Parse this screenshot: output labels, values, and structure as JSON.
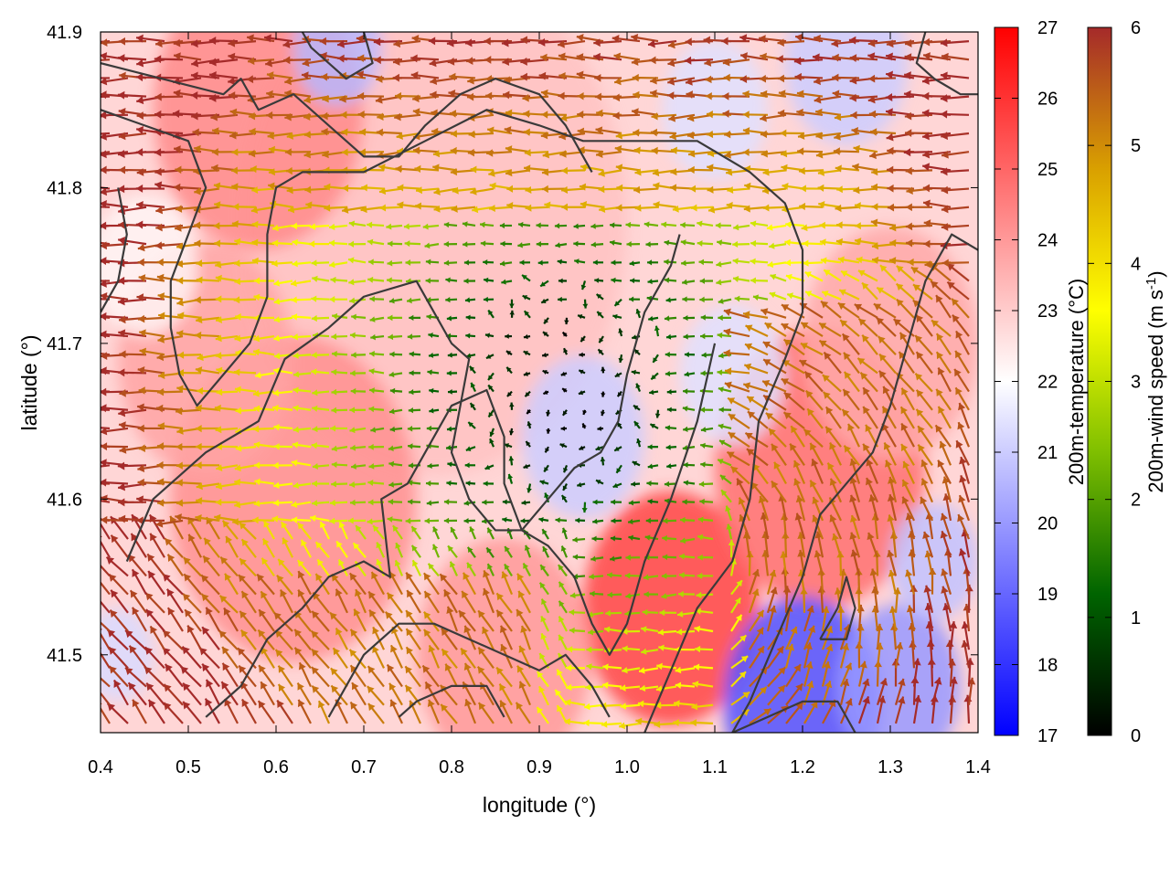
{
  "chart_data": {
    "type": "heatmap",
    "title": "",
    "xlabel": "longitude (°)",
    "ylabel": "latitude (°)",
    "xlim": [
      0.4,
      1.4
    ],
    "ylim": [
      41.45,
      41.9
    ],
    "xticks": [
      "0.4",
      "0.5",
      "0.6",
      "0.7",
      "0.8",
      "0.9",
      "1.0",
      "1.1",
      "1.2",
      "1.3",
      "1.4"
    ],
    "yticks": [
      "41.5",
      "41.6",
      "41.7",
      "41.8",
      "41.9"
    ],
    "grid": false,
    "legend": "none",
    "temperature_colorbar": {
      "label": "200m-temperature (°C)",
      "range": [
        17,
        27
      ],
      "ticks": [
        "17",
        "18",
        "19",
        "20",
        "21",
        "22",
        "23",
        "24",
        "25",
        "26",
        "27"
      ],
      "colors": {
        "min": "#0000ff",
        "mid": "#ffffff",
        "max": "#ff0000"
      }
    },
    "wind_colorbar": {
      "label_main": "200m-wind speed (m s",
      "label_exp": "-1",
      "label_close": ")",
      "range": [
        0,
        6
      ],
      "ticks": [
        "0",
        "1",
        "2",
        "3",
        "4",
        "5",
        "6"
      ],
      "colors": [
        "#000000",
        "#006400",
        "#7fbf00",
        "#ffff00",
        "#d9a000",
        "#a52a2a"
      ]
    },
    "temperature_blobs": [
      {
        "lon": 0.78,
        "lat": 41.78,
        "t": 23.2,
        "r": 0.22
      },
      {
        "lon": 0.62,
        "lat": 41.6,
        "t": 24.2,
        "r": 0.14
      },
      {
        "lon": 0.52,
        "lat": 41.69,
        "t": 23.8,
        "r": 0.1
      },
      {
        "lon": 0.58,
        "lat": 41.85,
        "t": 24.3,
        "r": 0.12
      },
      {
        "lon": 1.05,
        "lat": 41.53,
        "t": 25.6,
        "r": 0.1
      },
      {
        "lon": 1.22,
        "lat": 41.62,
        "t": 24.8,
        "r": 0.12
      },
      {
        "lon": 1.3,
        "lat": 41.7,
        "t": 23.7,
        "r": 0.1
      },
      {
        "lon": 0.86,
        "lat": 41.5,
        "t": 24.0,
        "r": 0.1
      },
      {
        "lon": 0.95,
        "lat": 41.64,
        "t": 21.0,
        "r": 0.07
      },
      {
        "lon": 1.12,
        "lat": 41.68,
        "t": 21.4,
        "r": 0.06
      },
      {
        "lon": 1.2,
        "lat": 41.47,
        "t": 18.6,
        "r": 0.09
      },
      {
        "lon": 1.31,
        "lat": 41.48,
        "t": 20.0,
        "r": 0.07
      },
      {
        "lon": 1.35,
        "lat": 41.56,
        "t": 20.8,
        "r": 0.05
      },
      {
        "lon": 0.67,
        "lat": 41.89,
        "t": 20.6,
        "r": 0.05
      },
      {
        "lon": 1.25,
        "lat": 41.88,
        "t": 21.0,
        "r": 0.07
      },
      {
        "lon": 1.1,
        "lat": 41.85,
        "t": 21.4,
        "r": 0.06
      },
      {
        "lon": 0.42,
        "lat": 41.5,
        "t": 21.3,
        "r": 0.04
      },
      {
        "lon": 0.45,
        "lat": 41.75,
        "t": 22.2,
        "r": 0.06
      }
    ],
    "wind_features": {
      "calm_center": {
        "lon": 0.93,
        "lat": 41.67,
        "radius": 0.12
      },
      "vortex_center": {
        "lon": 1.08,
        "lat": 41.58
      }
    },
    "contours": [
      [
        [
          0.4,
          41.88
        ],
        [
          0.47,
          41.87
        ],
        [
          0.54,
          41.86
        ],
        [
          0.56,
          41.87
        ],
        [
          0.58,
          41.85
        ],
        [
          0.62,
          41.86
        ],
        [
          0.66,
          41.84
        ],
        [
          0.7,
          41.82
        ],
        [
          0.74,
          41.82
        ],
        [
          0.77,
          41.84
        ],
        [
          0.81,
          41.86
        ],
        [
          0.85,
          41.87
        ],
        [
          0.9,
          41.86
        ],
        [
          0.93,
          41.84
        ],
        [
          0.96,
          41.81
        ]
      ],
      [
        [
          0.4,
          41.85
        ],
        [
          0.45,
          41.84
        ],
        [
          0.5,
          41.83
        ],
        [
          0.52,
          41.8
        ],
        [
          0.5,
          41.77
        ],
        [
          0.48,
          41.74
        ],
        [
          0.48,
          41.71
        ],
        [
          0.49,
          41.68
        ],
        [
          0.51,
          41.66
        ],
        [
          0.54,
          41.68
        ],
        [
          0.57,
          41.7
        ],
        [
          0.59,
          41.73
        ],
        [
          0.59,
          41.77
        ],
        [
          0.6,
          41.8
        ],
        [
          0.63,
          41.81
        ],
        [
          0.7,
          41.81
        ],
        [
          0.77,
          41.83
        ],
        [
          0.84,
          41.85
        ],
        [
          0.9,
          41.84
        ],
        [
          0.95,
          41.83
        ],
        [
          1.02,
          41.83
        ],
        [
          1.08,
          41.83
        ],
        [
          1.14,
          41.81
        ],
        [
          1.18,
          41.79
        ],
        [
          1.2,
          41.76
        ],
        [
          1.2,
          41.72
        ],
        [
          1.18,
          41.69
        ],
        [
          1.15,
          41.65
        ],
        [
          1.14,
          41.6
        ],
        [
          1.12,
          41.56
        ],
        [
          1.08,
          41.53
        ],
        [
          1.05,
          41.49
        ],
        [
          1.02,
          41.45
        ]
      ],
      [
        [
          0.43,
          41.56
        ],
        [
          0.46,
          41.6
        ],
        [
          0.52,
          41.63
        ],
        [
          0.58,
          41.65
        ],
        [
          0.61,
          41.69
        ],
        [
          0.66,
          41.71
        ],
        [
          0.7,
          41.73
        ],
        [
          0.76,
          41.74
        ],
        [
          0.78,
          41.72
        ],
        [
          0.8,
          41.7
        ],
        [
          0.82,
          41.69
        ],
        [
          0.81,
          41.66
        ],
        [
          0.8,
          41.63
        ],
        [
          0.82,
          41.6
        ],
        [
          0.85,
          41.58
        ],
        [
          0.88,
          41.58
        ],
        [
          0.91,
          41.6
        ],
        [
          0.94,
          41.62
        ],
        [
          0.97,
          41.63
        ],
        [
          0.99,
          41.65
        ],
        [
          1.0,
          41.68
        ],
        [
          1.02,
          41.72
        ],
        [
          1.05,
          41.75
        ],
        [
          1.06,
          41.77
        ]
      ],
      [
        [
          0.52,
          41.46
        ],
        [
          0.56,
          41.48
        ],
        [
          0.59,
          41.51
        ],
        [
          0.63,
          41.53
        ],
        [
          0.66,
          41.55
        ],
        [
          0.7,
          41.56
        ],
        [
          0.73,
          41.55
        ],
        [
          0.72,
          41.6
        ],
        [
          0.75,
          41.61
        ],
        [
          0.77,
          41.63
        ],
        [
          0.8,
          41.66
        ],
        [
          0.84,
          41.67
        ],
        [
          0.86,
          41.64
        ],
        [
          0.86,
          41.61
        ],
        [
          0.88,
          41.58
        ],
        [
          0.91,
          41.57
        ],
        [
          0.94,
          41.55
        ],
        [
          0.96,
          41.52
        ],
        [
          0.98,
          41.5
        ],
        [
          1.0,
          41.52
        ],
        [
          1.02,
          41.56
        ],
        [
          1.05,
          41.6
        ],
        [
          1.08,
          41.65
        ],
        [
          1.1,
          41.7
        ]
      ],
      [
        [
          0.66,
          41.46
        ],
        [
          0.7,
          41.5
        ],
        [
          0.74,
          41.52
        ],
        [
          0.78,
          41.52
        ],
        [
          0.82,
          41.51
        ],
        [
          0.86,
          41.5
        ],
        [
          0.9,
          41.49
        ],
        [
          0.93,
          41.5
        ],
        [
          0.96,
          41.48
        ],
        [
          0.98,
          41.46
        ]
      ],
      [
        [
          0.74,
          41.46
        ],
        [
          0.76,
          41.47
        ],
        [
          0.8,
          41.48
        ],
        [
          0.84,
          41.48
        ],
        [
          0.86,
          41.46
        ]
      ],
      [
        [
          1.26,
          41.45
        ],
        [
          1.24,
          41.47
        ],
        [
          1.2,
          41.47
        ],
        [
          1.16,
          41.46
        ],
        [
          1.12,
          41.45
        ]
      ],
      [
        [
          1.22,
          41.51
        ],
        [
          1.25,
          41.51
        ],
        [
          1.26,
          41.53
        ],
        [
          1.25,
          41.55
        ],
        [
          1.24,
          41.53
        ],
        [
          1.22,
          41.51
        ]
      ],
      [
        [
          1.4,
          41.76
        ],
        [
          1.37,
          41.77
        ],
        [
          1.34,
          41.74
        ],
        [
          1.32,
          41.7
        ],
        [
          1.3,
          41.66
        ],
        [
          1.28,
          41.63
        ],
        [
          1.25,
          41.61
        ],
        [
          1.22,
          41.59
        ],
        [
          1.2,
          41.55
        ],
        [
          1.17,
          41.51
        ],
        [
          1.14,
          41.47
        ],
        [
          1.12,
          41.45
        ]
      ],
      [
        [
          1.34,
          41.9
        ],
        [
          1.33,
          41.88
        ],
        [
          1.35,
          41.87
        ],
        [
          1.38,
          41.86
        ],
        [
          1.4,
          41.86
        ]
      ],
      [
        [
          0.7,
          41.9
        ],
        [
          0.71,
          41.88
        ],
        [
          0.68,
          41.87
        ],
        [
          0.66,
          41.88
        ],
        [
          0.64,
          41.89
        ],
        [
          0.63,
          41.9
        ]
      ],
      [
        [
          0.4,
          41.72
        ],
        [
          0.42,
          41.74
        ],
        [
          0.43,
          41.77
        ],
        [
          0.42,
          41.8
        ]
      ]
    ]
  }
}
